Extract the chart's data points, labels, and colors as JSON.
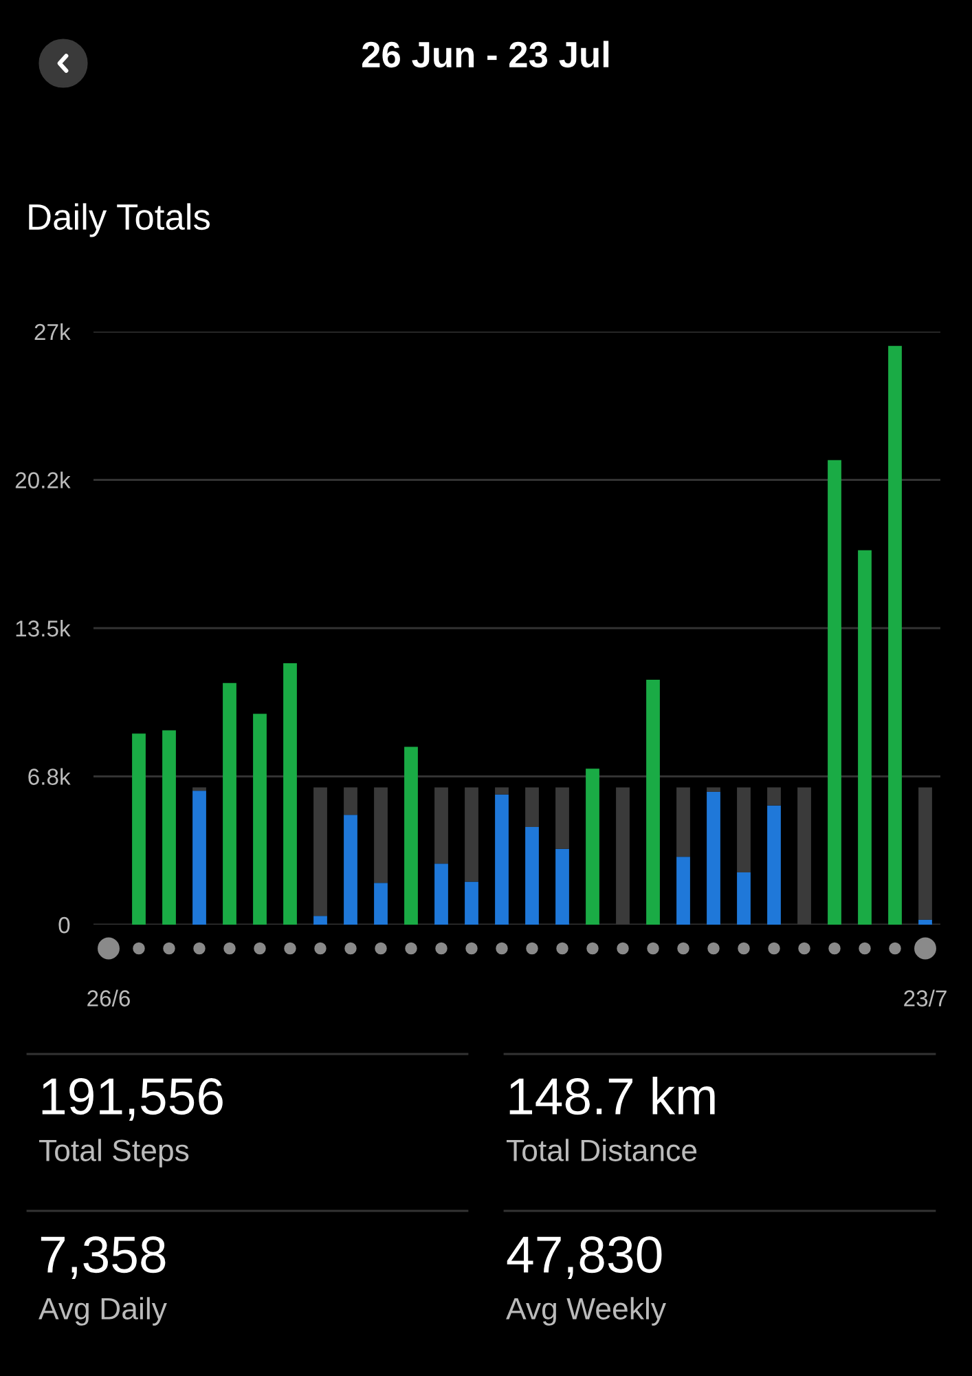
{
  "chart_data": {
    "type": "bar",
    "title": "26 Jun - 23 Jul",
    "subtitle": "Daily Totals",
    "categories": [
      "26/6",
      null,
      null,
      null,
      null,
      null,
      null,
      null,
      null,
      null,
      null,
      null,
      null,
      null,
      null,
      null,
      null,
      null,
      null,
      null,
      null,
      null,
      null,
      null,
      null,
      null,
      null,
      "23/7"
    ],
    "series": [
      {
        "color": "#1f78d9",
        "colors": [
          "#1aab45",
          "#1aab45",
          "#1aab45",
          "#1f78d9",
          "#1aab45",
          "#1aab45",
          "#1aab45",
          "#1f78d9",
          "#1f78d9",
          "#1f78d9",
          "#1aab45",
          "#1f78d9",
          "#1f78d9",
          "#1f78d9",
          "#1f78d9",
          "#1f78d9",
          "#1aab45",
          "#1f78d9",
          "#1aab45",
          "#1f78d9",
          "#1f78d9",
          "#1f78d9",
          "#1f78d9",
          "#1f78d9",
          "#1aab45",
          "#1aab45",
          "#1aab45",
          "#1f78d9"
        ],
        "values": [
          null,
          8700,
          8850,
          6100,
          11000,
          9600,
          11900,
          400,
          5000,
          1900,
          8100,
          2780,
          1960,
          5930,
          4450,
          3450,
          7100,
          0,
          11150,
          3090,
          6050,
          2380,
          5430,
          0,
          21150,
          17050,
          26350,
          230
        ]
      },
      {
        "color": "#3a3a3a",
        "values": [
          null,
          null,
          null,
          150,
          null,
          null,
          null,
          5850,
          1250,
          4350,
          null,
          3470,
          4290,
          320,
          1800,
          2800,
          null,
          6250,
          null,
          3160,
          200,
          3870,
          820,
          6250,
          null,
          null,
          null,
          6020
        ]
      }
    ],
    "stacked": true,
    "ylim": [
      0,
      27000
    ],
    "yticks": [
      0,
      {
        "value": 6750,
        "label": "6.8k"
      },
      {
        "value": 13500,
        "label": "13.5k"
      },
      {
        "value": 20250,
        "label": "20.2k"
      },
      {
        "value": 27000,
        "label": "27k"
      }
    ],
    "grid": "y",
    "annotations": [
      "191,556",
      "Total Steps",
      "148.7 km",
      "Total Distance",
      "7,358",
      "Avg Daily",
      "47,830",
      "Avg Weekly"
    ]
  }
}
